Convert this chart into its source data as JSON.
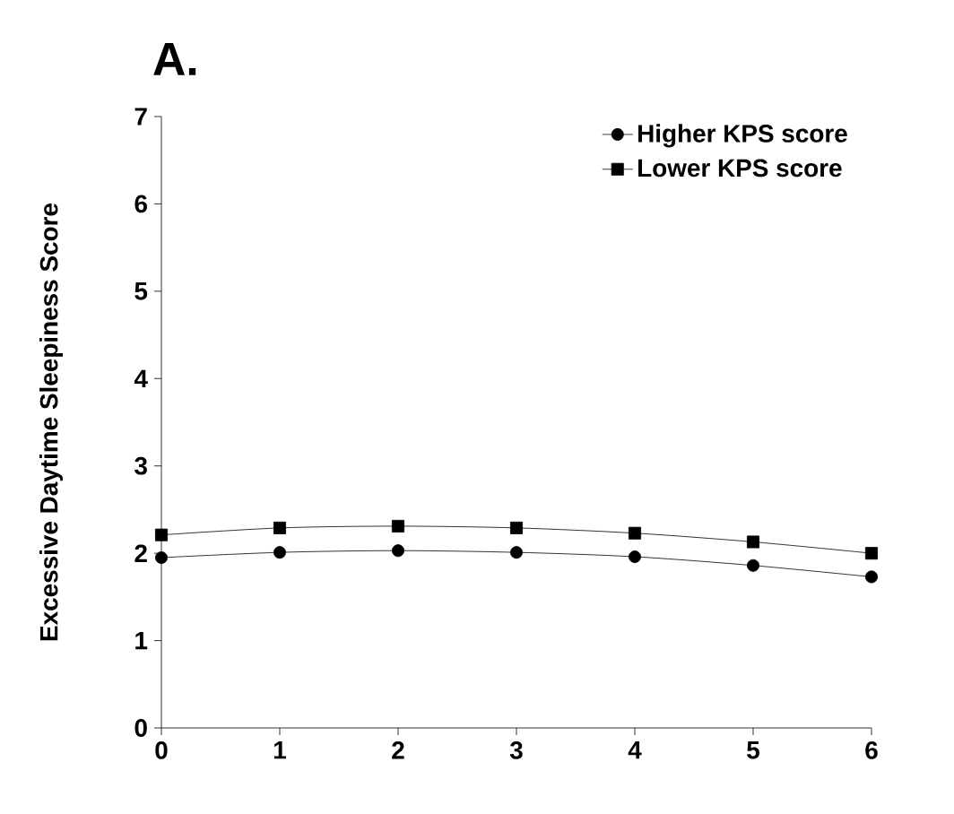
{
  "chart_data": {
    "type": "line",
    "title": "A.",
    "ylabel": "Excessive Daytime Sleepiness Score",
    "x": [
      0,
      1,
      2,
      3,
      4,
      5,
      6
    ],
    "xlim": [
      0,
      6
    ],
    "xticks": [
      0,
      1,
      2,
      3,
      4,
      5,
      6
    ],
    "ylim": [
      0,
      7
    ],
    "yticks": [
      0,
      1,
      2,
      3,
      4,
      5,
      6,
      7
    ],
    "grid": false,
    "legend": "top right",
    "series": [
      {
        "name": "Higher KPS score",
        "color": "#000000",
        "marker": "circle",
        "values": [
          1.95,
          2.01,
          2.03,
          2.01,
          1.96,
          1.86,
          1.73
        ]
      },
      {
        "name": "Lower KPS score",
        "color": "#000000",
        "marker": "square",
        "values": [
          2.21,
          2.29,
          2.31,
          2.29,
          2.23,
          2.13,
          2.0
        ]
      }
    ]
  }
}
